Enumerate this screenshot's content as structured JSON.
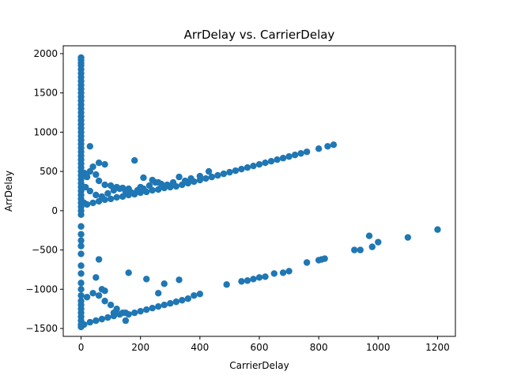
{
  "chart_data": {
    "type": "scatter",
    "title": "ArrDelay vs. CarrierDelay",
    "xlabel": "CarrierDelay",
    "ylabel": "ArrDelay",
    "xlim": [
      -60,
      1260
    ],
    "ylim": [
      -1600,
      2100
    ],
    "xticks": [
      0,
      200,
      400,
      600,
      800,
      1000,
      1200
    ],
    "yticks": [
      -1500,
      -1000,
      -500,
      0,
      500,
      1000,
      1500,
      2000
    ],
    "grid": false,
    "color": "#1f77b4",
    "series": [
      {
        "points": [
          [
            0,
            1950
          ],
          [
            0,
            1920
          ],
          [
            0,
            1880
          ],
          [
            0,
            1850
          ],
          [
            0,
            1800
          ],
          [
            0,
            1750
          ],
          [
            0,
            1700
          ],
          [
            0,
            1650
          ],
          [
            0,
            1600
          ],
          [
            0,
            1550
          ],
          [
            0,
            1500
          ],
          [
            0,
            1450
          ],
          [
            0,
            1400
          ],
          [
            0,
            1350
          ],
          [
            0,
            1300
          ],
          [
            0,
            1250
          ],
          [
            0,
            1200
          ],
          [
            0,
            1150
          ],
          [
            0,
            1100
          ],
          [
            0,
            1050
          ],
          [
            0,
            1000
          ],
          [
            0,
            950
          ],
          [
            0,
            900
          ],
          [
            0,
            850
          ],
          [
            0,
            800
          ],
          [
            0,
            750
          ],
          [
            0,
            700
          ],
          [
            0,
            650
          ],
          [
            0,
            600
          ],
          [
            0,
            550
          ],
          [
            0,
            500
          ],
          [
            0,
            450
          ],
          [
            0,
            400
          ],
          [
            0,
            350
          ],
          [
            0,
            300
          ],
          [
            0,
            250
          ],
          [
            0,
            200
          ],
          [
            0,
            150
          ],
          [
            0,
            100
          ],
          [
            0,
            50
          ],
          [
            0,
            0
          ],
          [
            0,
            -50
          ],
          [
            0,
            -200
          ],
          [
            0,
            -300
          ],
          [
            0,
            -380
          ],
          [
            0,
            -450
          ],
          [
            0,
            -550
          ],
          [
            0,
            -700
          ],
          [
            0,
            -800
          ],
          [
            0,
            -920
          ],
          [
            0,
            -1000
          ],
          [
            0,
            -1080
          ],
          [
            0,
            -1150
          ],
          [
            0,
            -1200
          ],
          [
            0,
            -1250
          ],
          [
            0,
            -1300
          ],
          [
            0,
            -1350
          ],
          [
            0,
            -1400
          ],
          [
            0,
            -1450
          ],
          [
            0,
            -1480
          ],
          [
            10,
            480
          ],
          [
            20,
            430
          ],
          [
            30,
            500
          ],
          [
            40,
            560
          ],
          [
            50,
            460
          ],
          [
            60,
            380
          ],
          [
            80,
            330
          ],
          [
            100,
            320
          ],
          [
            120,
            300
          ],
          [
            140,
            290
          ],
          [
            160,
            280
          ],
          [
            200,
            300
          ],
          [
            10,
            100
          ],
          [
            20,
            80
          ],
          [
            40,
            100
          ],
          [
            60,
            120
          ],
          [
            80,
            140
          ],
          [
            100,
            150
          ],
          [
            120,
            170
          ],
          [
            140,
            180
          ],
          [
            160,
            200
          ],
          [
            180,
            210
          ],
          [
            200,
            230
          ],
          [
            220,
            240
          ],
          [
            240,
            260
          ],
          [
            260,
            270
          ],
          [
            280,
            290
          ],
          [
            300,
            300
          ],
          [
            320,
            310
          ],
          [
            340,
            330
          ],
          [
            360,
            350
          ],
          [
            380,
            370
          ],
          [
            400,
            390
          ],
          [
            420,
            410
          ],
          [
            440,
            430
          ],
          [
            460,
            450
          ],
          [
            480,
            470
          ],
          [
            500,
            490
          ],
          [
            520,
            510
          ],
          [
            540,
            530
          ],
          [
            560,
            550
          ],
          [
            580,
            570
          ],
          [
            600,
            590
          ],
          [
            620,
            610
          ],
          [
            640,
            630
          ],
          [
            660,
            650
          ],
          [
            680,
            670
          ],
          [
            700,
            690
          ],
          [
            720,
            710
          ],
          [
            740,
            730
          ],
          [
            760,
            750
          ],
          [
            800,
            790
          ],
          [
            830,
            820
          ],
          [
            850,
            840
          ],
          [
            15,
            300
          ],
          [
            30,
            250
          ],
          [
            50,
            200
          ],
          [
            70,
            180
          ],
          [
            90,
            220
          ],
          [
            110,
            260
          ],
          [
            130,
            280
          ],
          [
            150,
            240
          ],
          [
            170,
            230
          ],
          [
            190,
            260
          ],
          [
            210,
            280
          ],
          [
            230,
            320
          ],
          [
            250,
            360
          ],
          [
            270,
            340
          ],
          [
            290,
            330
          ],
          [
            310,
            360
          ],
          [
            330,
            430
          ],
          [
            350,
            380
          ],
          [
            370,
            410
          ],
          [
            400,
            440
          ],
          [
            430,
            500
          ],
          [
            30,
            820
          ],
          [
            60,
            610
          ],
          [
            80,
            590
          ],
          [
            180,
            640
          ],
          [
            210,
            420
          ],
          [
            240,
            390
          ],
          [
            260,
            360
          ],
          [
            20,
            -1100
          ],
          [
            40,
            -1050
          ],
          [
            60,
            -1080
          ],
          [
            80,
            -1150
          ],
          [
            100,
            -1200
          ],
          [
            120,
            -1250
          ],
          [
            140,
            -1300
          ],
          [
            160,
            -1320
          ],
          [
            180,
            -1300
          ],
          [
            200,
            -1280
          ],
          [
            220,
            -1260
          ],
          [
            240,
            -1240
          ],
          [
            260,
            -1220
          ],
          [
            280,
            -1200
          ],
          [
            300,
            -1180
          ],
          [
            320,
            -1160
          ],
          [
            340,
            -1140
          ],
          [
            360,
            -1120
          ],
          [
            380,
            -1080
          ],
          [
            400,
            -1060
          ],
          [
            10,
            -1450
          ],
          [
            30,
            -1420
          ],
          [
            50,
            -1400
          ],
          [
            70,
            -1380
          ],
          [
            90,
            -1360
          ],
          [
            110,
            -1340
          ],
          [
            130,
            -1320
          ],
          [
            150,
            -1300
          ],
          [
            50,
            -850
          ],
          [
            60,
            -620
          ],
          [
            70,
            -1000
          ],
          [
            80,
            -1020
          ],
          [
            110,
            -1300
          ],
          [
            150,
            -1400
          ],
          [
            160,
            -790
          ],
          [
            220,
            -870
          ],
          [
            260,
            -1050
          ],
          [
            280,
            -930
          ],
          [
            330,
            -880
          ],
          [
            490,
            -940
          ],
          [
            540,
            -900
          ],
          [
            560,
            -890
          ],
          [
            580,
            -870
          ],
          [
            600,
            -850
          ],
          [
            620,
            -840
          ],
          [
            650,
            -800
          ],
          [
            680,
            -790
          ],
          [
            700,
            -770
          ],
          [
            760,
            -660
          ],
          [
            800,
            -630
          ],
          [
            810,
            -620
          ],
          [
            820,
            -610
          ],
          [
            920,
            -500
          ],
          [
            940,
            -500
          ],
          [
            970,
            -320
          ],
          [
            980,
            -460
          ],
          [
            1000,
            -400
          ],
          [
            1100,
            -340
          ],
          [
            1200,
            -240
          ]
        ]
      }
    ]
  }
}
